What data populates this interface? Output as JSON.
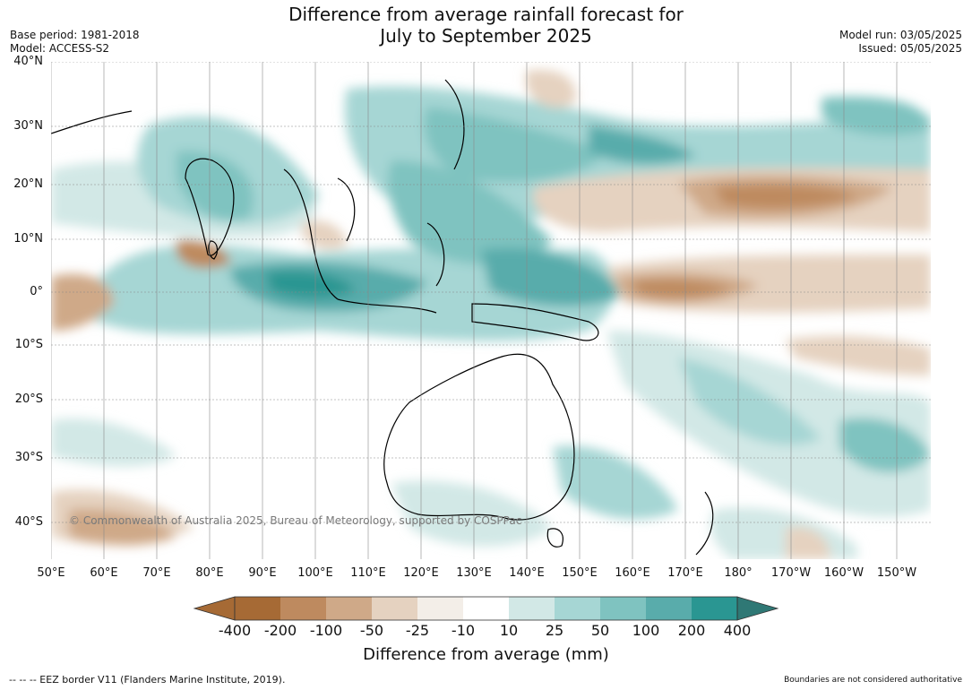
{
  "title_line1": "Difference from average rainfall forecast for",
  "title_line2": "July to September 2025",
  "base_period": "Base period: 1981-2018",
  "model": "Model: ACCESS-S2",
  "model_run": "Model run: 03/05/2025",
  "issued": "Issued: 05/05/2025",
  "lat_labels": [
    "40°N",
    "30°N",
    "20°N",
    "10°N",
    "0°",
    "10°S",
    "20°S",
    "30°S",
    "40°S"
  ],
  "lon_labels": [
    "50°E",
    "60°E",
    "70°E",
    "80°E",
    "90°E",
    "100°E",
    "110°E",
    "120°E",
    "130°E",
    "140°E",
    "150°E",
    "160°E",
    "170°E",
    "180°",
    "170°W",
    "160°W",
    "150°W"
  ],
  "colorbar": {
    "labels": [
      "-400",
      "-200",
      "-100",
      "-50",
      "-25",
      "-10",
      "10",
      "25",
      "50",
      "100",
      "200",
      "400"
    ],
    "colors": [
      "#a66a35",
      "#a66a35",
      "#be8a5f",
      "#cfa988",
      "#e5d2c0",
      "#f3eee8",
      "#ffffff",
      "#d2e8e6",
      "#a6d6d4",
      "#7fc3c0",
      "#59acab",
      "#2a9692",
      "#2f7875"
    ],
    "title": "Difference from average (mm)"
  },
  "copyright": "© Commonwealth of Australia 2025, Bureau of Meteorology, supported by COSPPac",
  "eez_note": "--  --  -- EEZ border V11 (Flanders Marine Institute, 2019).",
  "boundary_note": "Boundaries are not considered authoritative"
}
